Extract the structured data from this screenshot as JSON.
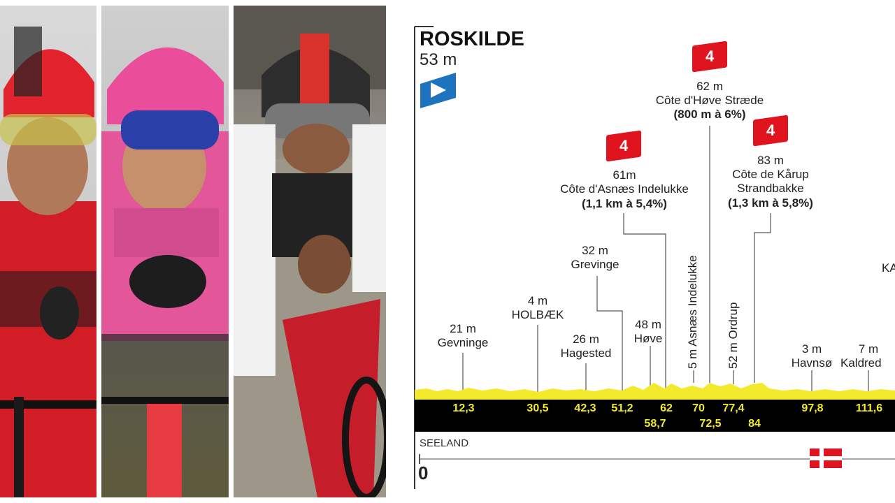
{
  "start": {
    "name": "ROSKILDE",
    "altitude": "53 m"
  },
  "climbs": [
    {
      "cat": "4",
      "altitude": "62 m",
      "name": "Côte d'Høve Stræde",
      "detail": "(800 m à 6%)"
    },
    {
      "cat": "4",
      "altitude": "61m",
      "name": "Côte d'Asnæs Indelukke",
      "detail": "(1,1 km à 5,4%)"
    },
    {
      "cat": "4",
      "altitude": "83 m",
      "name1": "Côte de Kårup",
      "name2": "Strandbakke",
      "detail": "(1,3 km à 5,8%)"
    }
  ],
  "places": {
    "gevninge": {
      "alt": "21 m",
      "name": "Gevninge"
    },
    "holbaek": {
      "alt": "4 m",
      "name": "HOLBÆK"
    },
    "hagested": {
      "alt": "26 m",
      "name": "Hagested"
    },
    "grevinge": {
      "alt": "32 m",
      "name": "Grevinge"
    },
    "hove": {
      "alt": "48 m",
      "name": "Høve"
    },
    "asnaes": {
      "label": "5 m Asnæs Indelukke"
    },
    "ordrup": {
      "label": "52 m Ordrup"
    },
    "havnso": {
      "alt": "3 m",
      "name": "Havnsø"
    },
    "kaldred": {
      "alt": "7 m",
      "name": "Kaldred"
    },
    "partial": {
      "name": "KA"
    }
  },
  "km_markers_top": [
    "12,3",
    "30,5",
    "42,3",
    "51,2",
    "62",
    "70",
    "77,4",
    "97,8",
    "111,6"
  ],
  "km_markers_bottom": [
    "58,7",
    "72,5",
    "84"
  ],
  "region": "SEELAND",
  "axis_start": "0",
  "colors": {
    "profile": "#f2ea2a",
    "band": "#000000",
    "climb_badge": "#e0141e",
    "start_flag": "#1e73be"
  }
}
